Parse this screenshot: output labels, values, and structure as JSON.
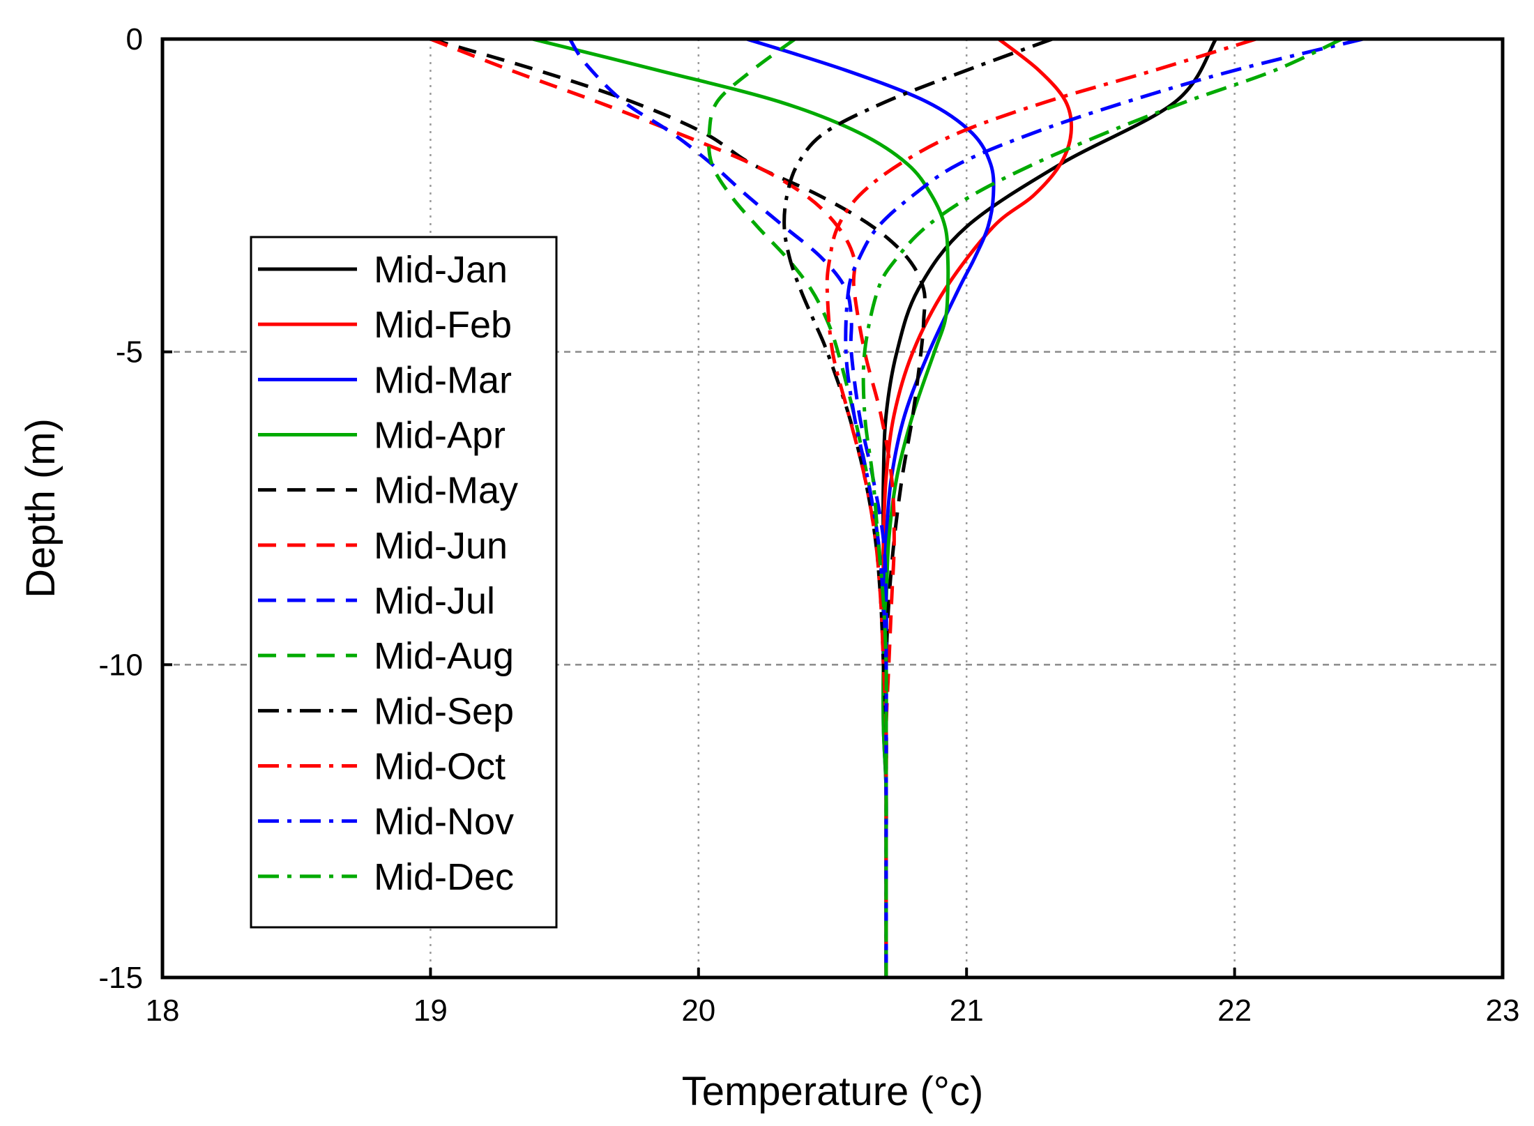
{
  "chart_data": {
    "type": "line",
    "title": "",
    "xlabel": "Temperature (°c)",
    "ylabel": "Depth (m)",
    "xlim": [
      18,
      23
    ],
    "ylim": [
      -15,
      0
    ],
    "xticks": [
      18,
      19,
      20,
      21,
      22,
      23
    ],
    "xtick_labels": [
      "18",
      "19",
      "20",
      "21",
      "22",
      "23"
    ],
    "yticks": [
      0,
      -5,
      -10,
      -15
    ],
    "ytick_labels": [
      "0",
      "-5",
      "-10",
      "-15"
    ],
    "grid": {
      "x_major": "dotted",
      "y_major": "dashed"
    },
    "legend_position": "center-left",
    "series": [
      {
        "name": "Mid-Jan",
        "color": "#000000",
        "dash": "solid",
        "points": [
          [
            0,
            21.93
          ],
          [
            -1,
            21.78
          ],
          [
            -2,
            21.35
          ],
          [
            -3,
            21.0
          ],
          [
            -4,
            20.82
          ],
          [
            -5,
            20.74
          ],
          [
            -6,
            20.7
          ],
          [
            -7,
            20.69
          ],
          [
            -8,
            20.69
          ],
          [
            -9,
            20.7
          ],
          [
            -10,
            20.7
          ],
          [
            -11,
            20.7
          ],
          [
            -12,
            20.7
          ],
          [
            -13,
            20.7
          ],
          [
            -15,
            20.7
          ]
        ]
      },
      {
        "name": "Mid-Feb",
        "color": "#ff0000",
        "dash": "solid",
        "points": [
          [
            0,
            21.12
          ],
          [
            -0.5,
            21.27
          ],
          [
            -1,
            21.37
          ],
          [
            -1.5,
            21.39
          ],
          [
            -2,
            21.35
          ],
          [
            -2.5,
            21.25
          ],
          [
            -3,
            21.1
          ],
          [
            -4,
            20.92
          ],
          [
            -5,
            20.8
          ],
          [
            -6,
            20.73
          ],
          [
            -7,
            20.7
          ],
          [
            -8,
            20.69
          ],
          [
            -9,
            20.69
          ],
          [
            -10,
            20.69
          ],
          [
            -11,
            20.7
          ],
          [
            -12,
            20.7
          ],
          [
            -13,
            20.7
          ],
          [
            -15,
            20.7
          ]
        ]
      },
      {
        "name": "Mid-Mar",
        "color": "#0000ff",
        "dash": "solid",
        "points": [
          [
            0,
            20.18
          ],
          [
            -0.5,
            20.55
          ],
          [
            -1,
            20.85
          ],
          [
            -1.5,
            21.02
          ],
          [
            -2,
            21.09
          ],
          [
            -2.5,
            21.1
          ],
          [
            -3,
            21.08
          ],
          [
            -3.5,
            21.03
          ],
          [
            -4,
            20.97
          ],
          [
            -5,
            20.86
          ],
          [
            -6,
            20.77
          ],
          [
            -7,
            20.72
          ],
          [
            -8,
            20.7
          ],
          [
            -9,
            20.69
          ],
          [
            -10,
            20.69
          ],
          [
            -11,
            20.69
          ],
          [
            -12,
            20.7
          ],
          [
            -13,
            20.7
          ],
          [
            -15,
            20.7
          ]
        ]
      },
      {
        "name": "Mid-Apr",
        "color": "#00aa00",
        "dash": "solid",
        "points": [
          [
            0,
            19.38
          ],
          [
            -0.5,
            19.85
          ],
          [
            -1,
            20.3
          ],
          [
            -1.5,
            20.6
          ],
          [
            -2,
            20.78
          ],
          [
            -2.5,
            20.87
          ],
          [
            -3,
            20.92
          ],
          [
            -3.5,
            20.93
          ],
          [
            -4,
            20.93
          ],
          [
            -4.5,
            20.92
          ],
          [
            -5,
            20.88
          ],
          [
            -6,
            20.8
          ],
          [
            -7,
            20.74
          ],
          [
            -8,
            20.71
          ],
          [
            -9,
            20.7
          ],
          [
            -10,
            20.69
          ],
          [
            -11,
            20.69
          ],
          [
            -12,
            20.7
          ],
          [
            -13,
            20.7
          ],
          [
            -15,
            20.7
          ]
        ]
      },
      {
        "name": "Mid-May",
        "color": "#000000",
        "dash": "dash",
        "points": [
          [
            0,
            19.0
          ],
          [
            -0.5,
            19.4
          ],
          [
            -1,
            19.75
          ],
          [
            -1.5,
            20.02
          ],
          [
            -2,
            20.2
          ],
          [
            -2.5,
            20.45
          ],
          [
            -3,
            20.65
          ],
          [
            -3.5,
            20.78
          ],
          [
            -4,
            20.84
          ],
          [
            -4.5,
            20.84
          ],
          [
            -5,
            20.83
          ],
          [
            -6,
            20.8
          ],
          [
            -7,
            20.76
          ],
          [
            -8,
            20.73
          ],
          [
            -9,
            20.71
          ],
          [
            -10,
            20.7
          ],
          [
            -11,
            20.7
          ],
          [
            -12,
            20.7
          ],
          [
            -13,
            20.7
          ],
          [
            -15,
            20.7
          ]
        ]
      },
      {
        "name": "Mid-Jun",
        "color": "#ff0000",
        "dash": "dash",
        "points": [
          [
            0,
            19.0
          ],
          [
            -0.5,
            19.3
          ],
          [
            -1,
            19.62
          ],
          [
            -1.5,
            19.92
          ],
          [
            -2,
            20.2
          ],
          [
            -2.5,
            20.4
          ],
          [
            -3,
            20.52
          ],
          [
            -3.5,
            20.58
          ],
          [
            -4,
            20.58
          ],
          [
            -5,
            20.62
          ],
          [
            -6,
            20.68
          ],
          [
            -7,
            20.72
          ],
          [
            -8,
            20.73
          ],
          [
            -9,
            20.72
          ],
          [
            -10,
            20.71
          ],
          [
            -11,
            20.7
          ],
          [
            -12,
            20.7
          ],
          [
            -13,
            20.7
          ],
          [
            -15,
            20.7
          ]
        ]
      },
      {
        "name": "Mid-Jul",
        "color": "#0000ff",
        "dash": "dash",
        "points": [
          [
            0,
            19.52
          ],
          [
            -0.4,
            19.58
          ],
          [
            -1,
            19.72
          ],
          [
            -1.5,
            19.9
          ],
          [
            -2,
            20.05
          ],
          [
            -2.5,
            20.18
          ],
          [
            -3,
            20.32
          ],
          [
            -3.5,
            20.46
          ],
          [
            -4,
            20.55
          ],
          [
            -4.5,
            20.57
          ],
          [
            -5,
            20.57
          ],
          [
            -6,
            20.6
          ],
          [
            -7,
            20.65
          ],
          [
            -8,
            20.69
          ],
          [
            -9,
            20.7
          ],
          [
            -10,
            20.7
          ],
          [
            -11,
            20.7
          ],
          [
            -12,
            20.7
          ],
          [
            -13,
            20.7
          ],
          [
            -15,
            20.7
          ]
        ]
      },
      {
        "name": "Mid-Aug",
        "color": "#00aa00",
        "dash": "dash",
        "points": [
          [
            0,
            20.36
          ],
          [
            -0.5,
            20.2
          ],
          [
            -1,
            20.07
          ],
          [
            -1.5,
            20.04
          ],
          [
            -2,
            20.05
          ],
          [
            -2.5,
            20.12
          ],
          [
            -3,
            20.22
          ],
          [
            -3.5,
            20.33
          ],
          [
            -4,
            20.42
          ],
          [
            -4.5,
            20.48
          ],
          [
            -5,
            20.52
          ],
          [
            -6,
            20.58
          ],
          [
            -7,
            20.63
          ],
          [
            -8,
            20.67
          ],
          [
            -9,
            20.69
          ],
          [
            -10,
            20.7
          ],
          [
            -11,
            20.7
          ],
          [
            -12,
            20.7
          ],
          [
            -13,
            20.7
          ],
          [
            -15,
            20.7
          ]
        ]
      },
      {
        "name": "Mid-Sep",
        "color": "#000000",
        "dash": "dashdot",
        "points": [
          [
            0,
            21.32
          ],
          [
            -0.5,
            21.0
          ],
          [
            -1,
            20.7
          ],
          [
            -1.5,
            20.47
          ],
          [
            -2,
            20.37
          ],
          [
            -2.5,
            20.33
          ],
          [
            -3,
            20.32
          ],
          [
            -3.5,
            20.34
          ],
          [
            -4,
            20.38
          ],
          [
            -4.5,
            20.43
          ],
          [
            -5,
            20.48
          ],
          [
            -6,
            20.56
          ],
          [
            -7,
            20.62
          ],
          [
            -8,
            20.66
          ],
          [
            -9,
            20.68
          ],
          [
            -10,
            20.69
          ],
          [
            -11,
            20.7
          ],
          [
            -12,
            20.7
          ],
          [
            -13,
            20.7
          ],
          [
            -15,
            20.7
          ]
        ]
      },
      {
        "name": "Mid-Oct",
        "color": "#ff0000",
        "dash": "dashdot",
        "points": [
          [
            0,
            22.08
          ],
          [
            -0.5,
            21.7
          ],
          [
            -1,
            21.3
          ],
          [
            -1.5,
            20.97
          ],
          [
            -2,
            20.75
          ],
          [
            -2.5,
            20.6
          ],
          [
            -3,
            20.52
          ],
          [
            -3.5,
            20.49
          ],
          [
            -4,
            20.48
          ],
          [
            -5,
            20.5
          ],
          [
            -6,
            20.56
          ],
          [
            -7,
            20.62
          ],
          [
            -8,
            20.66
          ],
          [
            -9,
            20.68
          ],
          [
            -10,
            20.69
          ],
          [
            -11,
            20.7
          ],
          [
            -12,
            20.7
          ],
          [
            -13,
            20.7
          ],
          [
            -15,
            20.7
          ]
        ]
      },
      {
        "name": "Mid-Nov",
        "color": "#0000ff",
        "dash": "dashdot",
        "points": [
          [
            0,
            22.48
          ],
          [
            -0.5,
            22.0
          ],
          [
            -1,
            21.6
          ],
          [
            -1.5,
            21.25
          ],
          [
            -2,
            20.97
          ],
          [
            -2.5,
            20.8
          ],
          [
            -3,
            20.67
          ],
          [
            -3.5,
            20.6
          ],
          [
            -4,
            20.56
          ],
          [
            -5,
            20.55
          ],
          [
            -6,
            20.58
          ],
          [
            -7,
            20.63
          ],
          [
            -8,
            20.67
          ],
          [
            -9,
            20.69
          ],
          [
            -10,
            20.7
          ],
          [
            -11,
            20.7
          ],
          [
            -12,
            20.7
          ],
          [
            -13,
            20.7
          ],
          [
            -15,
            20.7
          ]
        ]
      },
      {
        "name": "Mid-Dec",
        "color": "#00aa00",
        "dash": "dashdot",
        "points": [
          [
            0,
            22.4
          ],
          [
            -0.5,
            22.15
          ],
          [
            -1,
            21.82
          ],
          [
            -1.5,
            21.52
          ],
          [
            -2,
            21.25
          ],
          [
            -2.5,
            21.02
          ],
          [
            -3,
            20.85
          ],
          [
            -3.5,
            20.74
          ],
          [
            -4,
            20.67
          ],
          [
            -5,
            20.62
          ],
          [
            -6,
            20.62
          ],
          [
            -7,
            20.65
          ],
          [
            -8,
            20.67
          ],
          [
            -9,
            20.69
          ],
          [
            -10,
            20.7
          ],
          [
            -11,
            20.7
          ],
          [
            -12,
            20.7
          ],
          [
            -13,
            20.7
          ],
          [
            -15,
            20.7
          ]
        ]
      }
    ]
  }
}
